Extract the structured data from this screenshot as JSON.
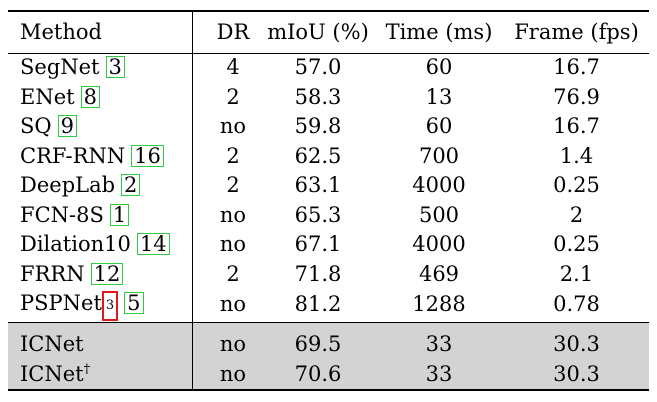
{
  "table": {
    "headers": {
      "method": "Method",
      "dr": "DR",
      "miou": "mIoU (%)",
      "time": "Time (ms)",
      "fps": "Frame (fps)"
    },
    "rows": [
      {
        "method": "SegNet",
        "cite": "3",
        "dr": "4",
        "miou": "57.0",
        "time": "60",
        "fps": "16.7"
      },
      {
        "method": "ENet",
        "cite": "8",
        "dr": "2",
        "miou": "58.3",
        "time": "13",
        "fps": "76.9"
      },
      {
        "method": "SQ",
        "cite": "9",
        "dr": "no",
        "miou": "59.8",
        "time": "60",
        "fps": "16.7"
      },
      {
        "method": "CRF-RNN",
        "cite": "16",
        "dr": "2",
        "miou": "62.5",
        "time": "700",
        "fps": "1.4"
      },
      {
        "method": "DeepLab",
        "cite": "2",
        "dr": "2",
        "miou": "63.1",
        "time": "4000",
        "fps": "0.25"
      },
      {
        "method": "FCN-8S",
        "cite": "1",
        "dr": "no",
        "miou": "65.3",
        "time": "500",
        "fps": "2"
      },
      {
        "method": "Dilation10",
        "cite": "14",
        "dr": "no",
        "miou": "67.1",
        "time": "4000",
        "fps": "0.25"
      },
      {
        "method": "FRRN",
        "cite": "12",
        "dr": "2",
        "miou": "71.8",
        "time": "469",
        "fps": "2.1"
      },
      {
        "method": "PSPNet",
        "sup": "3",
        "cite": "5",
        "dr": "no",
        "miou": "81.2",
        "time": "1288",
        "fps": "0.78"
      }
    ],
    "ours": [
      {
        "method": "ICNet",
        "dr": "no",
        "miou": "69.5",
        "time": "33",
        "fps": "30.3"
      },
      {
        "method": "ICNet",
        "sup": "†",
        "dr": "no",
        "miou": "70.6",
        "time": "33",
        "fps": "30.3"
      }
    ]
  },
  "colors": {
    "cite_border": "#2ecc40",
    "highlight_border": "#e0191c",
    "shade": "#d3d3d3"
  }
}
